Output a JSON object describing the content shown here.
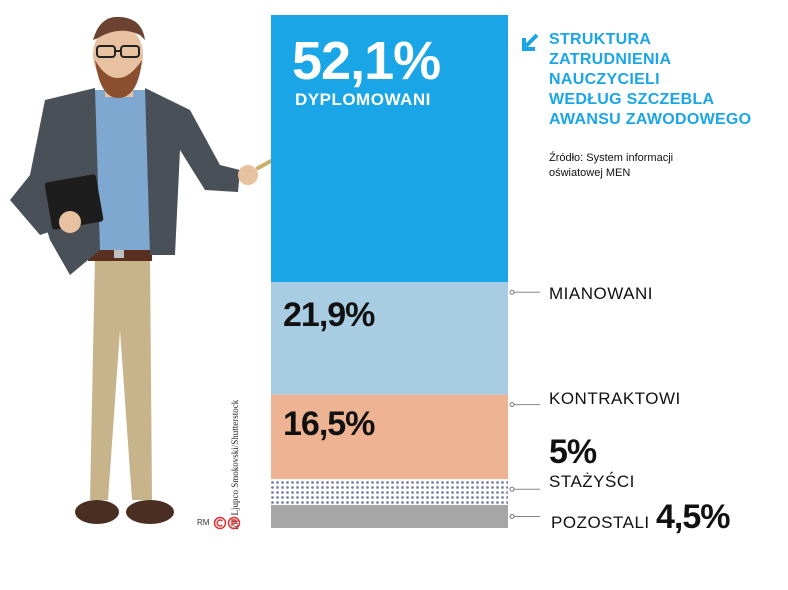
{
  "chart_data": {
    "type": "bar",
    "title": "STRUKTURA ZATRUDNIENIA NAUCZYCIELI WEDŁUG SZCZEBLA AWANSU ZAWODOWEGO",
    "source": "Źródło: System informacji oświatowej MEN",
    "categories": [
      "DYPLOMOWANI",
      "MIANOWANI",
      "KONTRAKTOWI",
      "STAŻYŚCI",
      "POZOSTALI"
    ],
    "values": [
      52.1,
      21.9,
      16.5,
      5,
      4.5
    ],
    "value_labels": [
      "52,1%",
      "21,9%",
      "16,5%",
      "5%",
      "4,5%"
    ],
    "colors": [
      "#1aa6e6",
      "#a8cde2",
      "#eeb393",
      "#9fa8c4",
      "#a6a6a6"
    ],
    "orientation": "stacked-vertical"
  },
  "title_lines": [
    "STRUKTURA",
    "ZATRUDNIENIA",
    "NAUCZYCIELI",
    "WEDŁUG SZCZEBLA",
    "AWANSU ZAWODOWEGO"
  ],
  "source_lines": [
    "Źródło: System informacji",
    "oświatowej MEN"
  ],
  "photo_credit": "fot. Ljupco Smokovski/Shutterstock",
  "signature": "RM",
  "accent_color": "#1aa6e6"
}
